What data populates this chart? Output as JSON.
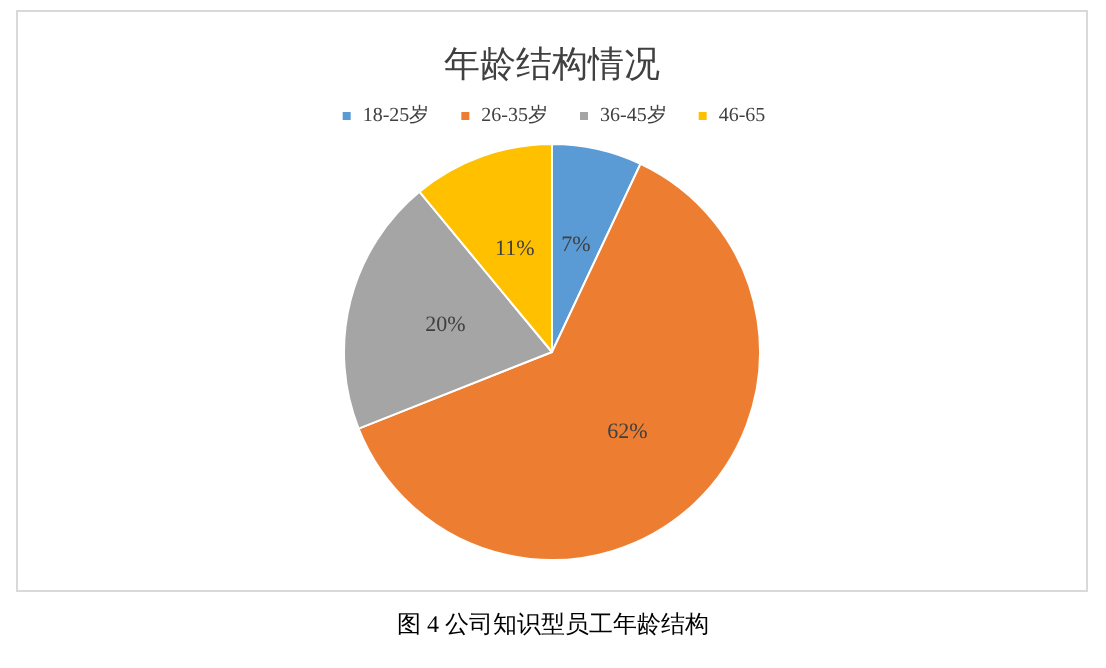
{
  "chart_data": {
    "type": "pie",
    "title": "年龄结构情况",
    "categories": [
      "18-25岁",
      "26-35岁",
      "36-45岁",
      "46-65"
    ],
    "values": [
      7,
      62,
      20,
      11
    ],
    "colors": [
      "#5b9bd5",
      "#ed7d31",
      "#a5a5a5",
      "#ffc000"
    ],
    "value_labels": [
      "7%",
      "62%",
      "20%",
      "11%"
    ],
    "legend": "top",
    "annotations": [
      "图 4 公司知识型员工年龄结构"
    ]
  }
}
